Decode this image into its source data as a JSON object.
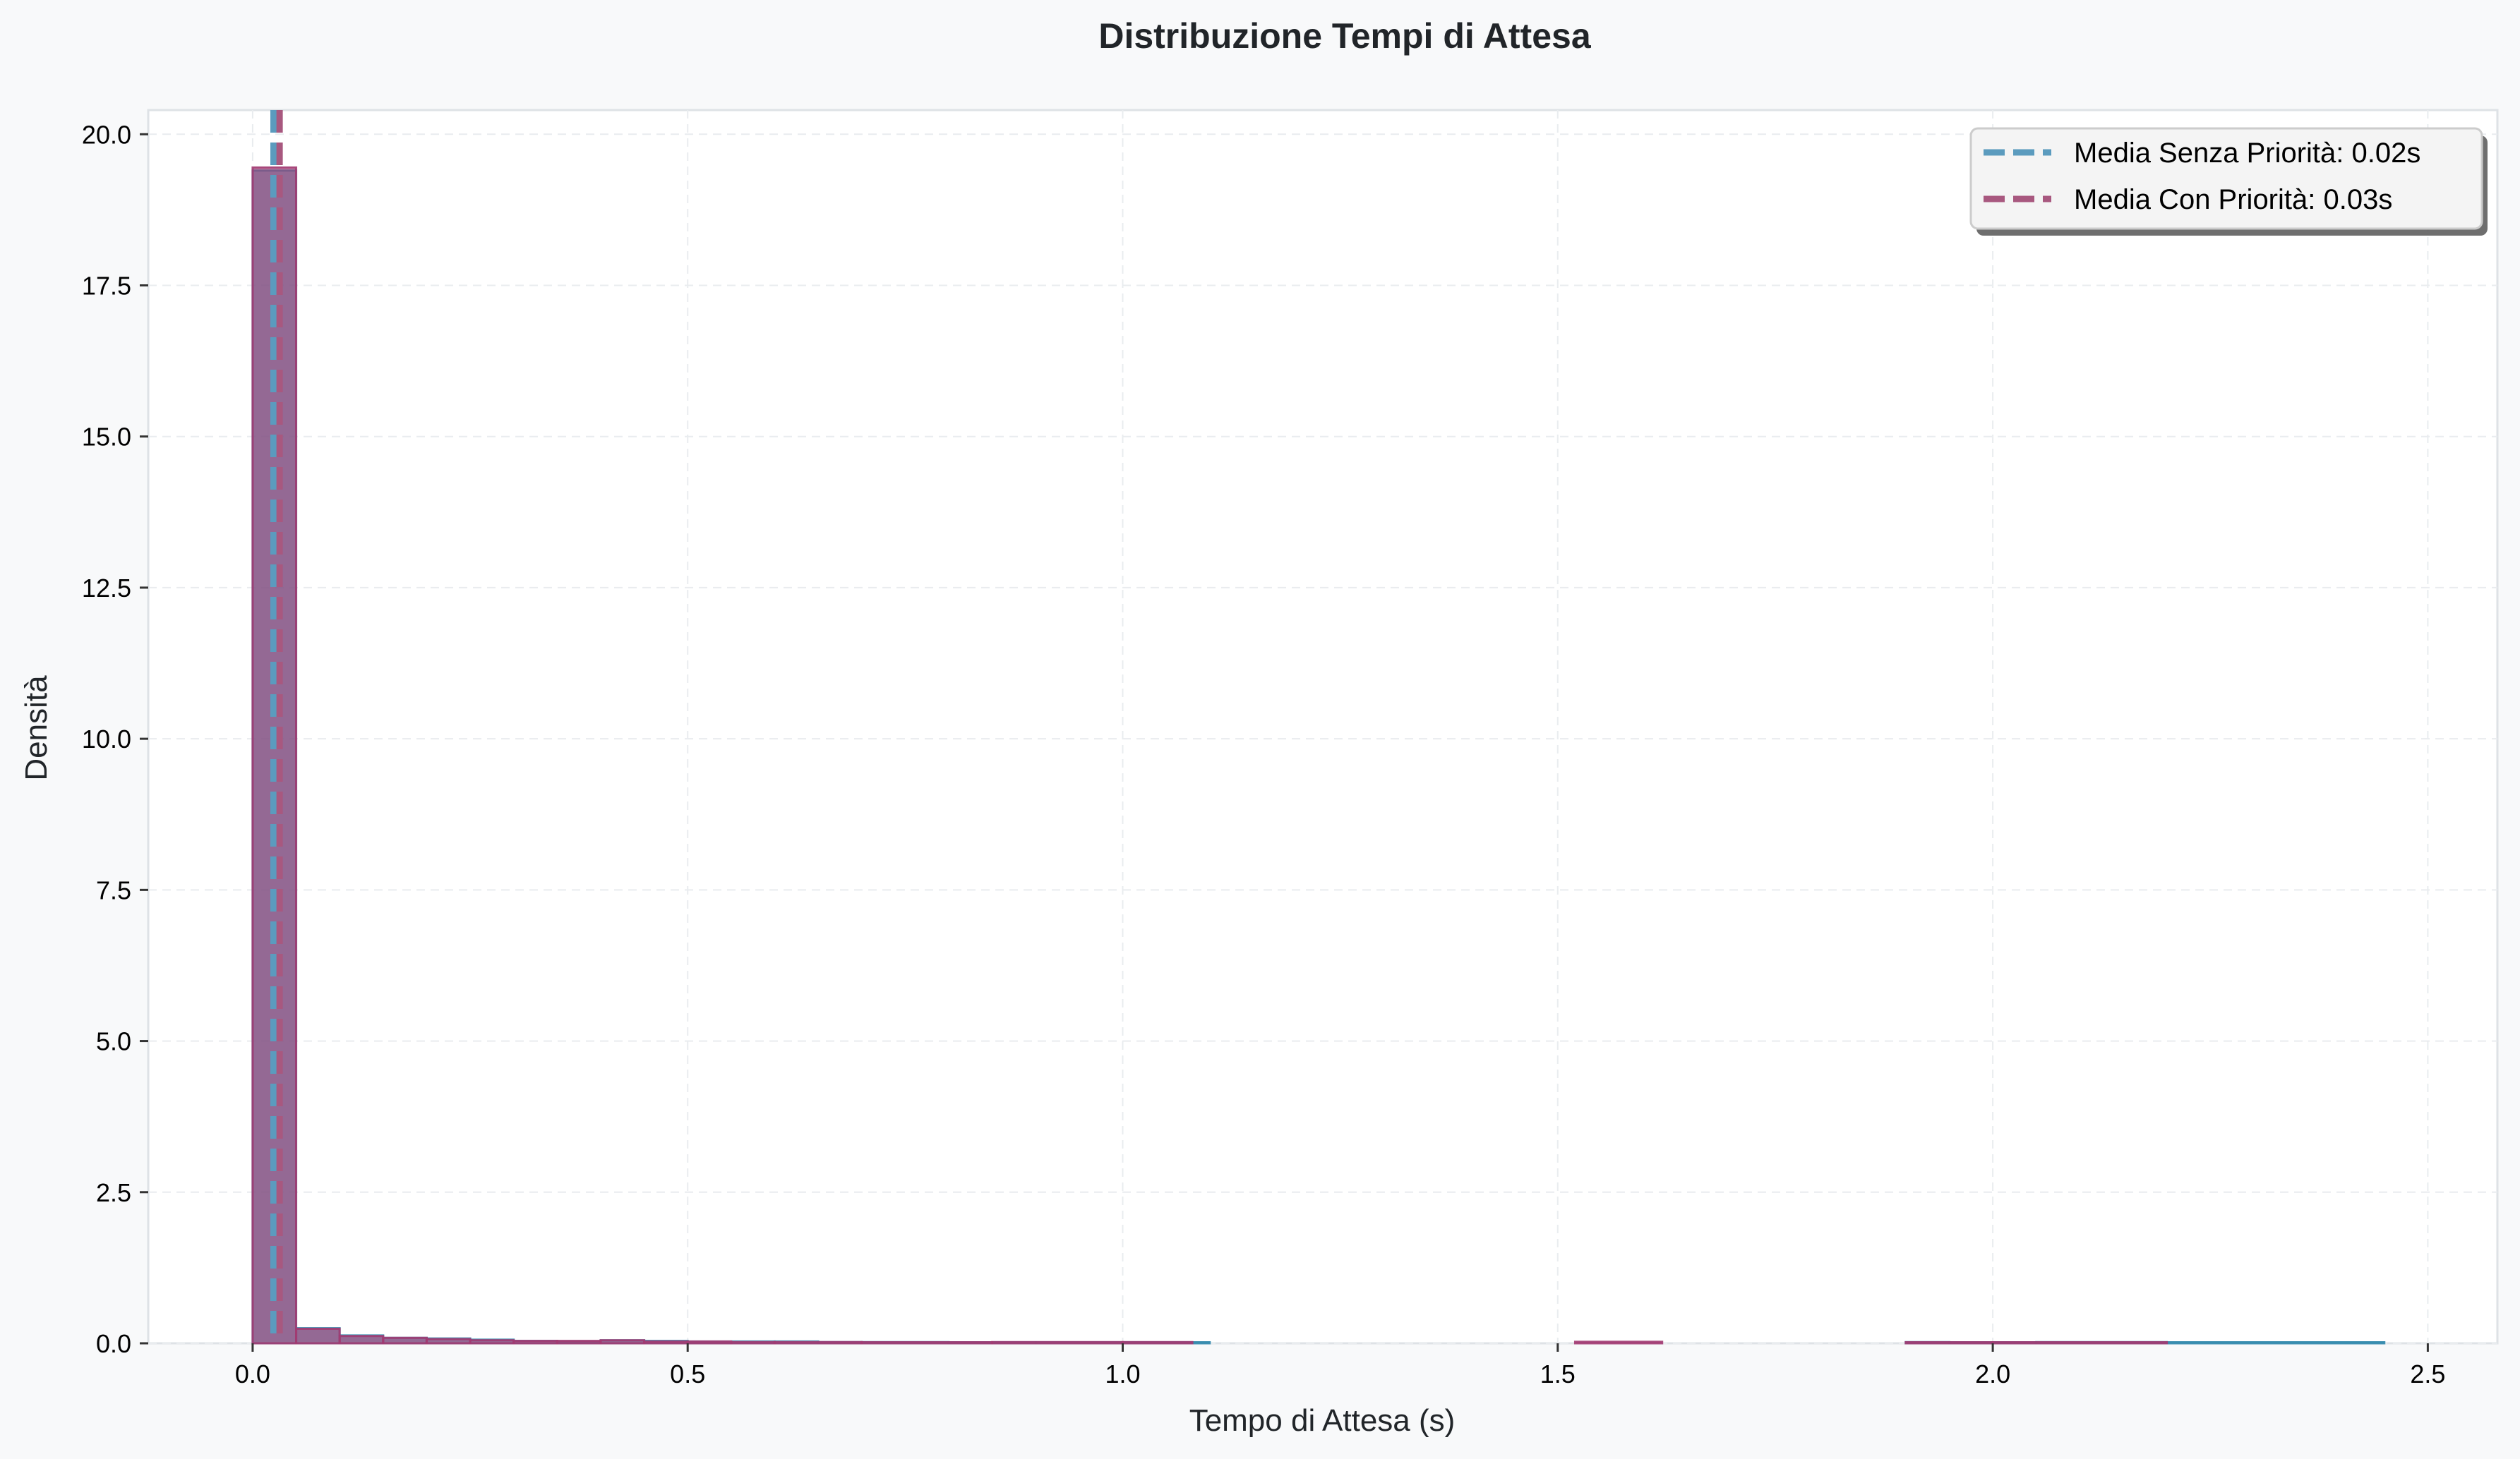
{
  "chart_data": {
    "type": "histogram",
    "title": "Distribuzione Tempi di Attesa",
    "xlabel": "Tempo di Attesa (s)",
    "ylabel": "Densità",
    "xlim": [
      -0.12,
      2.58
    ],
    "ylim": [
      0,
      20.4
    ],
    "xticks": [
      "0.0",
      "0.5",
      "1.0",
      "1.5",
      "2.0",
      "2.5"
    ],
    "xtick_values": [
      0,
      0.5,
      1.0,
      1.5,
      2.0,
      2.5
    ],
    "yticks": [
      "0.0",
      "2.5",
      "5.0",
      "7.5",
      "10.0",
      "12.5",
      "15.0",
      "17.5",
      "20.0"
    ],
    "ytick_values": [
      0,
      2.5,
      5,
      7.5,
      10,
      12.5,
      15,
      17.5,
      20
    ],
    "grid": true,
    "legend_position": "top-right",
    "series": [
      {
        "name": "",
        "color": "#2E86AB",
        "bins": [
          [
            0.0,
            0.05,
            19.4
          ],
          [
            0.05,
            0.1,
            0.25
          ],
          [
            0.1,
            0.15,
            0.13
          ],
          [
            0.15,
            0.2,
            0.09
          ],
          [
            0.2,
            0.25,
            0.08
          ],
          [
            0.25,
            0.3,
            0.06
          ],
          [
            0.3,
            0.35,
            0.04
          ],
          [
            0.35,
            0.4,
            0.03
          ],
          [
            0.4,
            0.45,
            0.05
          ],
          [
            0.45,
            0.5,
            0.04
          ],
          [
            0.5,
            0.55,
            0.03
          ],
          [
            0.55,
            0.6,
            0.03
          ],
          [
            0.6,
            0.65,
            0.03
          ],
          [
            0.65,
            0.7,
            0.02
          ],
          [
            0.7,
            0.8,
            0.02
          ],
          [
            0.8,
            0.9,
            0.015
          ],
          [
            0.9,
            1.0,
            0.015
          ],
          [
            1.0,
            1.1,
            0.01
          ],
          [
            1.9,
            1.95,
            0.02
          ],
          [
            1.95,
            2.05,
            0.015
          ],
          [
            2.05,
            2.2,
            0.02
          ],
          [
            2.2,
            2.45,
            0.01
          ]
        ]
      },
      {
        "name": "",
        "color": "#A23B72",
        "bins": [
          [
            0.0,
            0.05,
            19.45
          ],
          [
            0.05,
            0.1,
            0.24
          ],
          [
            0.1,
            0.15,
            0.12
          ],
          [
            0.15,
            0.2,
            0.09
          ],
          [
            0.2,
            0.25,
            0.07
          ],
          [
            0.25,
            0.3,
            0.05
          ],
          [
            0.3,
            0.35,
            0.04
          ],
          [
            0.35,
            0.4,
            0.04
          ],
          [
            0.4,
            0.45,
            0.05
          ],
          [
            0.45,
            0.5,
            0.03
          ],
          [
            0.5,
            0.55,
            0.03
          ],
          [
            0.55,
            0.6,
            0.02
          ],
          [
            0.6,
            0.7,
            0.02
          ],
          [
            0.7,
            0.85,
            0.015
          ],
          [
            0.85,
            1.0,
            0.02
          ],
          [
            1.0,
            1.08,
            0.02
          ],
          [
            1.52,
            1.62,
            0.025
          ],
          [
            1.9,
            2.0,
            0.01
          ],
          [
            2.0,
            2.2,
            0.015
          ]
        ]
      }
    ],
    "mean_lines": [
      {
        "label": "Media Senza Priorità: 0.02s",
        "value": 0.024,
        "color": "#5B9BBE"
      },
      {
        "label": "Media Con Priorità: 0.03s",
        "value": 0.031,
        "color": "#A8587F"
      }
    ]
  }
}
